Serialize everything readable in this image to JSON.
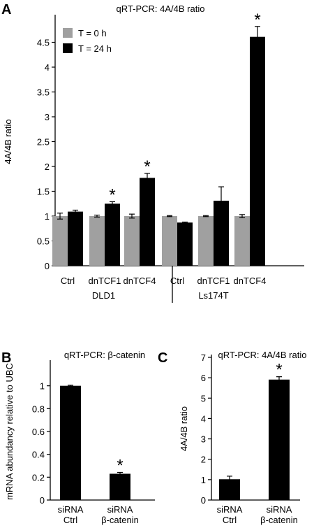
{
  "panel_letters": {
    "a": "A",
    "b": "B",
    "c": "C"
  },
  "chart_data": [
    {
      "id": "A",
      "type": "bar",
      "title": "qRT-PCR: 4A/4B ratio",
      "ylabel": "4A/4B ratio",
      "ylim": [
        0,
        5
      ],
      "yticks": [
        0,
        0.5,
        1,
        1.5,
        2,
        2.5,
        3,
        3.5,
        4,
        4.5
      ],
      "categories": [
        "Ctrl",
        "dnTCF1",
        "dnTCF4",
        "Ctrl",
        "dnTCF1",
        "dnTCF4"
      ],
      "groups": [
        {
          "label": "DLD1",
          "categories": [
            0,
            1,
            2
          ]
        },
        {
          "label": "Ls174T",
          "categories": [
            3,
            4,
            5
          ]
        }
      ],
      "series": [
        {
          "name": "T = 0 h",
          "color": "#a0a0a0",
          "values": [
            1.0,
            1.0,
            1.0,
            1.0,
            1.0,
            1.0
          ],
          "errors": [
            0.06,
            0.02,
            0.04,
            0.01,
            0.01,
            0.03
          ]
        },
        {
          "name": "T = 24 h",
          "color": "#000000",
          "values": [
            1.09,
            1.25,
            1.77,
            0.87,
            1.31,
            4.61
          ],
          "errors": [
            0.03,
            0.04,
            0.09,
            0.01,
            0.28,
            0.21
          ]
        }
      ],
      "significance": [
        {
          "series": 1,
          "category": 1,
          "label": "*"
        },
        {
          "series": 1,
          "category": 2,
          "label": "*"
        },
        {
          "series": 1,
          "category": 5,
          "label": "*"
        }
      ],
      "legend": "top-left"
    },
    {
      "id": "B",
      "type": "bar",
      "title": "qRT-PCR: β-catenin",
      "ylabel": "mRNA abundancy relative to UBC",
      "ylim": [
        0,
        1.2
      ],
      "yticks": [
        0,
        0.2,
        0.4,
        0.6,
        0.8,
        1
      ],
      "categories": [
        [
          "siRNA",
          "Ctrl"
        ],
        [
          "siRNA",
          "β-catenin"
        ]
      ],
      "series": [
        {
          "color": "#000000",
          "values": [
            1.0,
            0.23
          ],
          "errors": [
            0.005,
            0.012
          ]
        }
      ],
      "significance": [
        {
          "series": 0,
          "category": 1,
          "label": "*"
        }
      ]
    },
    {
      "id": "C",
      "type": "bar",
      "title": "qRT-PCR: 4A/4B ratio",
      "ylabel": "4A/4B ratio",
      "ylim": [
        0,
        7
      ],
      "yticks": [
        0,
        1,
        2,
        3,
        4,
        5,
        6,
        7
      ],
      "categories": [
        [
          "siRNA",
          "Ctrl"
        ],
        [
          "siRNA",
          "β-catenin"
        ]
      ],
      "series": [
        {
          "color": "#000000",
          "values": [
            1.02,
            5.91
          ],
          "errors": [
            0.15,
            0.14
          ]
        }
      ],
      "significance": [
        {
          "series": 0,
          "category": 1,
          "label": "*"
        }
      ]
    }
  ]
}
